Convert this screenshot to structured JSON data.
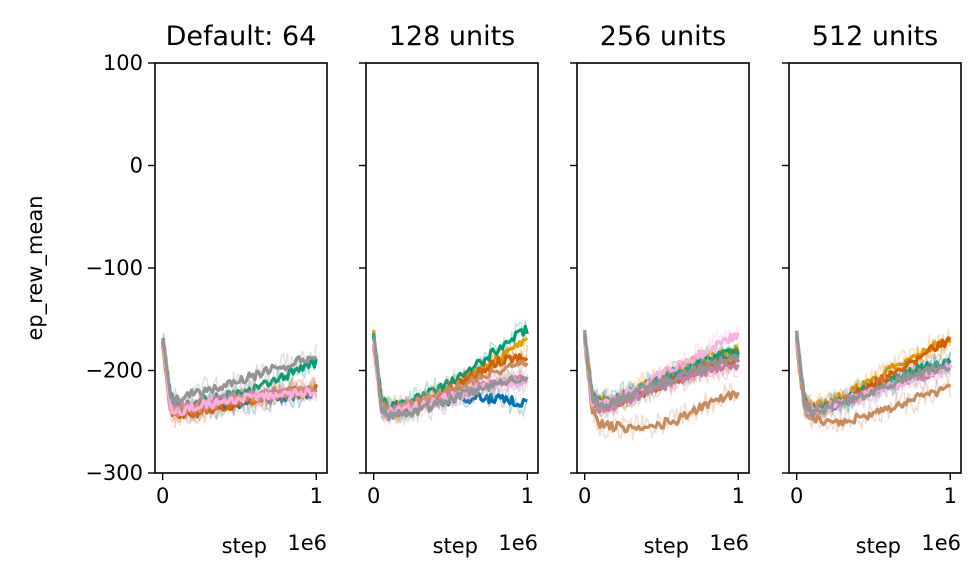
{
  "chart_data": {
    "type": "line",
    "ylabel": "ep_rew_mean",
    "ylim": [
      -300,
      100
    ],
    "yticks": [
      -300,
      -200,
      -100,
      0,
      100
    ],
    "ytick_labels": [
      "−300",
      "−200",
      "−100",
      "0",
      "100"
    ],
    "xlim": [
      -0.05,
      1.07
    ],
    "xticks": [
      0,
      1
    ],
    "xtick_labels": [
      "0",
      "1"
    ],
    "xlabel": "step",
    "xscale_label": "1e6",
    "grid": false,
    "series_colors": [
      "#0072B2",
      "#E69F00",
      "#009E73",
      "#D55E00",
      "#CC79A7",
      "#C98B5B",
      "#FBAFE4",
      "#949494"
    ],
    "panels": [
      {
        "title": "Default: 64",
        "series": [
          {
            "x": [
              0,
              0.05,
              0.1,
              0.2,
              0.3,
              0.4,
              0.5,
              0.6,
              0.7,
              0.8,
              0.9,
              1.0
            ],
            "y": [
              -170,
              -225,
              -240,
              -238,
              -235,
              -236,
              -233,
              -230,
              -228,
              -226,
              -224,
              -222
            ]
          },
          {
            "x": [
              0,
              0.05,
              0.1,
              0.2,
              0.3,
              0.4,
              0.5,
              0.6,
              0.7,
              0.8,
              0.9,
              1.0
            ],
            "y": [
              -165,
              -228,
              -238,
              -235,
              -232,
              -230,
              -228,
              -226,
              -225,
              -223,
              -222,
              -220
            ]
          },
          {
            "x": [
              0,
              0.05,
              0.1,
              0.2,
              0.3,
              0.4,
              0.5,
              0.6,
              0.7,
              0.8,
              0.9,
              1.0
            ],
            "y": [
              -168,
              -230,
              -235,
              -232,
              -228,
              -225,
              -222,
              -218,
              -212,
              -205,
              -198,
              -192
            ]
          },
          {
            "x": [
              0,
              0.05,
              0.1,
              0.2,
              0.3,
              0.4,
              0.5,
              0.6,
              0.7,
              0.8,
              0.9,
              1.0
            ],
            "y": [
              -172,
              -240,
              -245,
              -242,
              -238,
              -235,
              -232,
              -228,
              -225,
              -222,
              -220,
              -218
            ]
          },
          {
            "x": [
              0,
              0.05,
              0.1,
              0.2,
              0.3,
              0.4,
              0.5,
              0.6,
              0.7,
              0.8,
              0.9,
              1.0
            ],
            "y": [
              -170,
              -232,
              -236,
              -233,
              -230,
              -228,
              -226,
              -224,
              -222,
              -220,
              -218,
              -216
            ]
          },
          {
            "x": [
              0,
              0.05,
              0.1,
              0.2,
              0.3,
              0.4,
              0.5,
              0.6,
              0.7,
              0.8,
              0.9,
              1.0
            ],
            "y": [
              -175,
              -235,
              -240,
              -237,
              -234,
              -231,
              -229,
              -226,
              -224,
              -222,
              -220,
              -219
            ]
          },
          {
            "x": [
              0,
              0.05,
              0.1,
              0.2,
              0.3,
              0.4,
              0.5,
              0.6,
              0.7,
              0.8,
              0.9,
              1.0
            ],
            "y": [
              -168,
              -238,
              -240,
              -236,
              -233,
              -230,
              -228,
              -227,
              -225,
              -224,
              -222,
              -221
            ]
          },
          {
            "x": [
              0,
              0.05,
              0.1,
              0.2,
              0.3,
              0.4,
              0.5,
              0.6,
              0.7,
              0.8,
              0.9,
              1.0
            ],
            "y": [
              -165,
              -225,
              -228,
              -222,
              -218,
              -215,
              -210,
              -205,
              -200,
              -195,
              -190,
              -187
            ]
          }
        ]
      },
      {
        "title": "128 units",
        "series": [
          {
            "x": [
              0,
              0.05,
              0.1,
              0.2,
              0.3,
              0.4,
              0.5,
              0.6,
              0.7,
              0.8,
              0.9,
              1.0
            ],
            "y": [
              -170,
              -232,
              -240,
              -238,
              -235,
              -232,
              -230,
              -228,
              -226,
              -228,
              -230,
              -232
            ]
          },
          {
            "x": [
              0,
              0.05,
              0.1,
              0.2,
              0.3,
              0.4,
              0.5,
              0.6,
              0.7,
              0.8,
              0.9,
              1.0
            ],
            "y": [
              -165,
              -230,
              -238,
              -235,
              -230,
              -225,
              -218,
              -210,
              -200,
              -190,
              -180,
              -172
            ]
          },
          {
            "x": [
              0,
              0.05,
              0.1,
              0.2,
              0.3,
              0.4,
              0.5,
              0.6,
              0.7,
              0.8,
              0.9,
              1.0
            ],
            "y": [
              -168,
              -228,
              -236,
              -232,
              -226,
              -220,
              -212,
              -203,
              -192,
              -180,
              -168,
              -160
            ]
          },
          {
            "x": [
              0,
              0.05,
              0.1,
              0.2,
              0.3,
              0.4,
              0.5,
              0.6,
              0.7,
              0.8,
              0.9,
              1.0
            ],
            "y": [
              -172,
              -235,
              -242,
              -238,
              -232,
              -226,
              -218,
              -210,
              -200,
              -192,
              -188,
              -185
            ]
          },
          {
            "x": [
              0,
              0.05,
              0.1,
              0.2,
              0.3,
              0.4,
              0.5,
              0.6,
              0.7,
              0.8,
              0.9,
              1.0
            ],
            "y": [
              -170,
              -236,
              -240,
              -236,
              -232,
              -228,
              -224,
              -220,
              -216,
              -212,
              -208,
              -205
            ]
          },
          {
            "x": [
              0,
              0.05,
              0.1,
              0.2,
              0.3,
              0.4,
              0.5,
              0.6,
              0.7,
              0.8,
              0.9,
              1.0
            ],
            "y": [
              -175,
              -234,
              -240,
              -235,
              -230,
              -224,
              -218,
              -212,
              -206,
              -200,
              -196,
              -192
            ]
          },
          {
            "x": [
              0,
              0.05,
              0.1,
              0.2,
              0.3,
              0.4,
              0.5,
              0.6,
              0.7,
              0.8,
              0.9,
              1.0
            ],
            "y": [
              -168,
              -238,
              -242,
              -238,
              -234,
              -230,
              -226,
              -222,
              -218,
              -214,
              -212,
              -210
            ]
          },
          {
            "x": [
              0,
              0.05,
              0.1,
              0.2,
              0.3,
              0.4,
              0.5,
              0.6,
              0.7,
              0.8,
              0.9,
              1.0
            ],
            "y": [
              -165,
              -235,
              -245,
              -242,
              -238,
              -234,
              -228,
              -222,
              -218,
              -214,
              -210,
              -208
            ]
          }
        ]
      },
      {
        "title": "256 units",
        "series": [
          {
            "x": [
              0,
              0.05,
              0.1,
              0.2,
              0.3,
              0.4,
              0.5,
              0.6,
              0.7,
              0.8,
              0.9,
              1.0
            ],
            "y": [
              -170,
              -228,
              -232,
              -228,
              -222,
              -216,
              -210,
              -204,
              -198,
              -192,
              -188,
              -185
            ]
          },
          {
            "x": [
              0,
              0.05,
              0.1,
              0.2,
              0.3,
              0.4,
              0.5,
              0.6,
              0.7,
              0.8,
              0.9,
              1.0
            ],
            "y": [
              -165,
              -225,
              -230,
              -226,
              -220,
              -213,
              -206,
              -198,
              -192,
              -186,
              -182,
              -178
            ]
          },
          {
            "x": [
              0,
              0.05,
              0.1,
              0.2,
              0.3,
              0.4,
              0.5,
              0.6,
              0.7,
              0.8,
              0.9,
              1.0
            ],
            "y": [
              -168,
              -226,
              -232,
              -227,
              -221,
              -214,
              -207,
              -200,
              -194,
              -189,
              -185,
              -182
            ]
          },
          {
            "x": [
              0,
              0.05,
              0.1,
              0.2,
              0.3,
              0.4,
              0.5,
              0.6,
              0.7,
              0.8,
              0.9,
              1.0
            ],
            "y": [
              -172,
              -230,
              -236,
              -232,
              -226,
              -220,
              -214,
              -208,
              -202,
              -196,
              -192,
              -190
            ]
          },
          {
            "x": [
              0,
              0.05,
              0.1,
              0.2,
              0.3,
              0.4,
              0.5,
              0.6,
              0.7,
              0.8,
              0.9,
              1.0
            ],
            "y": [
              -170,
              -232,
              -238,
              -234,
              -228,
              -222,
              -216,
              -210,
              -205,
              -200,
              -197,
              -194
            ]
          },
          {
            "x": [
              0,
              0.05,
              0.1,
              0.2,
              0.3,
              0.4,
              0.5,
              0.6,
              0.7,
              0.8,
              0.9,
              1.0
            ],
            "y": [
              -175,
              -240,
              -252,
              -255,
              -256,
              -255,
              -252,
              -248,
              -240,
              -232,
              -226,
              -222
            ]
          },
          {
            "x": [
              0,
              0.05,
              0.1,
              0.2,
              0.3,
              0.4,
              0.5,
              0.6,
              0.7,
              0.8,
              0.9,
              1.0
            ],
            "y": [
              -168,
              -230,
              -234,
              -228,
              -220,
              -212,
              -204,
              -196,
              -188,
              -180,
              -172,
              -165
            ]
          },
          {
            "x": [
              0,
              0.05,
              0.1,
              0.2,
              0.3,
              0.4,
              0.5,
              0.6,
              0.7,
              0.8,
              0.9,
              1.0
            ],
            "y": [
              -165,
              -228,
              -235,
              -230,
              -224,
              -218,
              -212,
              -206,
              -200,
              -195,
              -190,
              -188
            ]
          }
        ]
      },
      {
        "title": "512 units",
        "series": [
          {
            "x": [
              0,
              0.05,
              0.1,
              0.2,
              0.3,
              0.4,
              0.5,
              0.6,
              0.7,
              0.8,
              0.9,
              1.0
            ],
            "y": [
              -170,
              -232,
              -240,
              -236,
              -230,
              -224,
              -218,
              -212,
              -206,
              -200,
              -196,
              -193
            ]
          },
          {
            "x": [
              0,
              0.05,
              0.1,
              0.2,
              0.3,
              0.4,
              0.5,
              0.6,
              0.7,
              0.8,
              0.9,
              1.0
            ],
            "y": [
              -165,
              -228,
              -236,
              -232,
              -225,
              -217,
              -208,
              -199,
              -190,
              -182,
              -175,
              -170
            ]
          },
          {
            "x": [
              0,
              0.05,
              0.1,
              0.2,
              0.3,
              0.4,
              0.5,
              0.6,
              0.7,
              0.8,
              0.9,
              1.0
            ],
            "y": [
              -168,
              -230,
              -238,
              -234,
              -228,
              -222,
              -216,
              -210,
              -204,
              -198,
              -194,
              -191
            ]
          },
          {
            "x": [
              0,
              0.05,
              0.1,
              0.2,
              0.3,
              0.4,
              0.5,
              0.6,
              0.7,
              0.8,
              0.9,
              1.0
            ],
            "y": [
              -172,
              -232,
              -240,
              -236,
              -229,
              -222,
              -214,
              -205,
              -196,
              -187,
              -178,
              -170
            ]
          },
          {
            "x": [
              0,
              0.05,
              0.1,
              0.2,
              0.3,
              0.4,
              0.5,
              0.6,
              0.7,
              0.8,
              0.9,
              1.0
            ],
            "y": [
              -170,
              -234,
              -240,
              -236,
              -231,
              -226,
              -221,
              -216,
              -211,
              -206,
              -202,
              -199
            ]
          },
          {
            "x": [
              0,
              0.05,
              0.1,
              0.2,
              0.3,
              0.4,
              0.5,
              0.6,
              0.7,
              0.8,
              0.9,
              1.0
            ],
            "y": [
              -175,
              -238,
              -248,
              -250,
              -249,
              -246,
              -242,
              -237,
              -232,
              -226,
              -222,
              -218
            ]
          },
          {
            "x": [
              0,
              0.05,
              0.1,
              0.2,
              0.3,
              0.4,
              0.5,
              0.6,
              0.7,
              0.8,
              0.9,
              1.0
            ],
            "y": [
              -168,
              -234,
              -240,
              -236,
              -231,
              -226,
              -221,
              -216,
              -211,
              -206,
              -201,
              -197
            ]
          },
          {
            "x": [
              0,
              0.05,
              0.1,
              0.2,
              0.3,
              0.4,
              0.5,
              0.6,
              0.7,
              0.8,
              0.9,
              1.0
            ],
            "y": [
              -165,
              -232,
              -240,
              -236,
              -231,
              -226,
              -220,
              -214,
              -208,
              -203,
              -198,
              -195
            ]
          }
        ]
      }
    ]
  }
}
